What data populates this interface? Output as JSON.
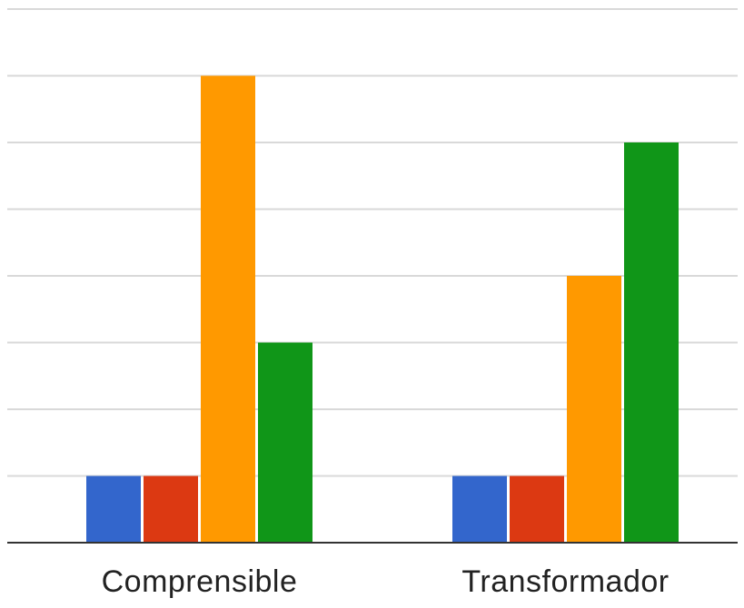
{
  "chart_data": {
    "type": "bar",
    "categories": [
      "Comprensible",
      "Transformador"
    ],
    "series": [
      {
        "color": "#3366cc",
        "values": [
          1,
          1
        ]
      },
      {
        "color": "#dc3912",
        "values": [
          1,
          1
        ]
      },
      {
        "color": "#ff9900",
        "values": [
          7,
          4
        ]
      },
      {
        "color": "#109618",
        "values": [
          3,
          6
        ]
      }
    ],
    "ylim": [
      0,
      8
    ],
    "grid": true,
    "legend": "none",
    "title": "",
    "xlabel": "",
    "ylabel": ""
  }
}
